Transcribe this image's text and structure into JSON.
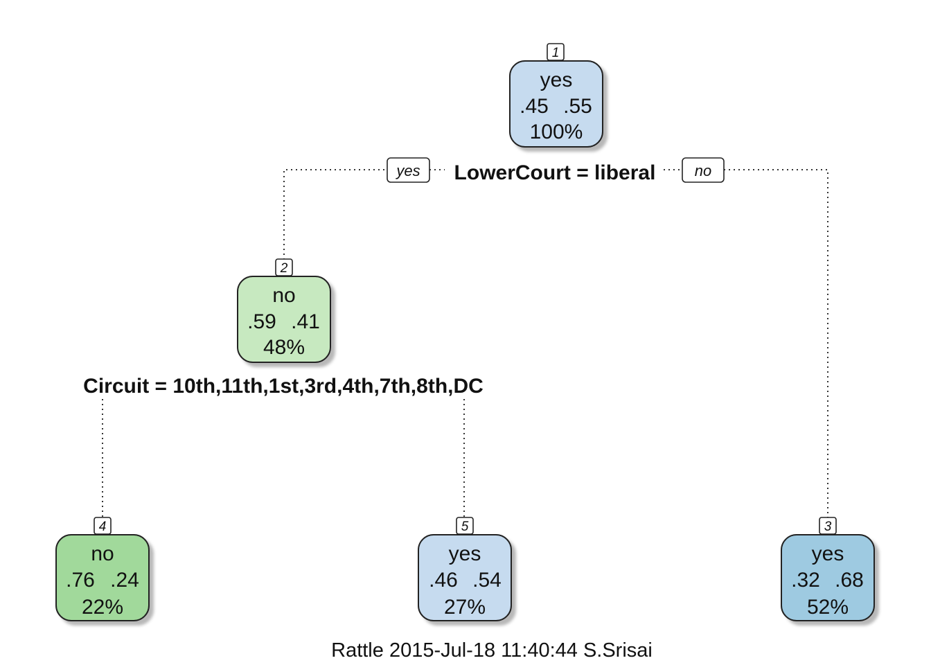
{
  "nodes": [
    {
      "id": "1",
      "cls": "yes",
      "p1": ".45",
      "p2": ".55",
      "pct": "100%",
      "color": "#c6dbef"
    },
    {
      "id": "2",
      "cls": "no",
      "p1": ".59",
      "p2": ".41",
      "pct": "48%",
      "color": "#c7e9c0"
    },
    {
      "id": "4",
      "cls": "no",
      "p1": ".76",
      "p2": ".24",
      "pct": "22%",
      "color": "#a1d99b"
    },
    {
      "id": "5",
      "cls": "yes",
      "p1": ".46",
      "p2": ".54",
      "pct": "27%",
      "color": "#c6dbef"
    },
    {
      "id": "3",
      "cls": "yes",
      "p1": ".32",
      "p2": ".68",
      "pct": "52%",
      "color": "#9ecae1"
    }
  ],
  "splits": {
    "root": "LowerCourt = liberal",
    "node2": "Circuit = 10th,11th,1st,3rd,4th,7th,8th,DC"
  },
  "branch_labels": {
    "left": "yes",
    "right": "no"
  },
  "footer": "Rattle 2015-Jul-18 11:40:44 S.Srisai"
}
